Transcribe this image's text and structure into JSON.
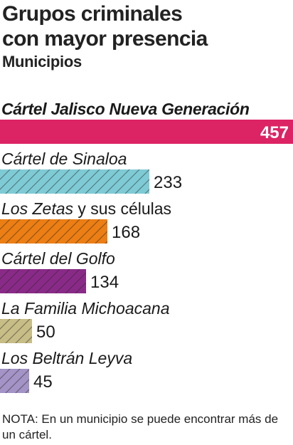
{
  "header": {
    "title_line1": "Grupos criminales",
    "title_line2": "con mayor presencia",
    "subtitle": "Municipios"
  },
  "chart_data": {
    "type": "bar",
    "orientation": "horizontal",
    "title": "Grupos criminales con mayor presencia",
    "subtitle": "Municipios",
    "xlim": [
      0,
      457
    ],
    "grid": false,
    "legend": "none",
    "bars": [
      {
        "label_main": "Cártel Jalisco Nueva Generación",
        "label_rest": "",
        "value": 457,
        "color": "#dc2364",
        "pattern": "solid",
        "label_bold": true
      },
      {
        "label_main": "Cártel de Sinaloa",
        "label_rest": "",
        "value": 233,
        "color": "#7ecbd5",
        "pattern": "hatched",
        "label_bold": false
      },
      {
        "label_main": "Los Zetas",
        "label_rest": " y sus células",
        "value": 168,
        "color": "#ec7e13",
        "pattern": "hatched",
        "label_bold": false
      },
      {
        "label_main": "Cártel del Golfo",
        "label_rest": "",
        "value": 134,
        "color": "#8a2a88",
        "pattern": "hatched",
        "label_bold": false
      },
      {
        "label_main": "La Familia Michoacana",
        "label_rest": "",
        "value": 50,
        "color": "#c7bd86",
        "pattern": "hatched",
        "label_bold": false
      },
      {
        "label_main": "Los Beltrán Leyva",
        "label_rest": "",
        "value": 45,
        "color": "#a393c6",
        "pattern": "hatched",
        "label_bold": false
      }
    ]
  },
  "footer": {
    "note": "NOTA: En un municipio se puede encontrar más de un cártel."
  }
}
